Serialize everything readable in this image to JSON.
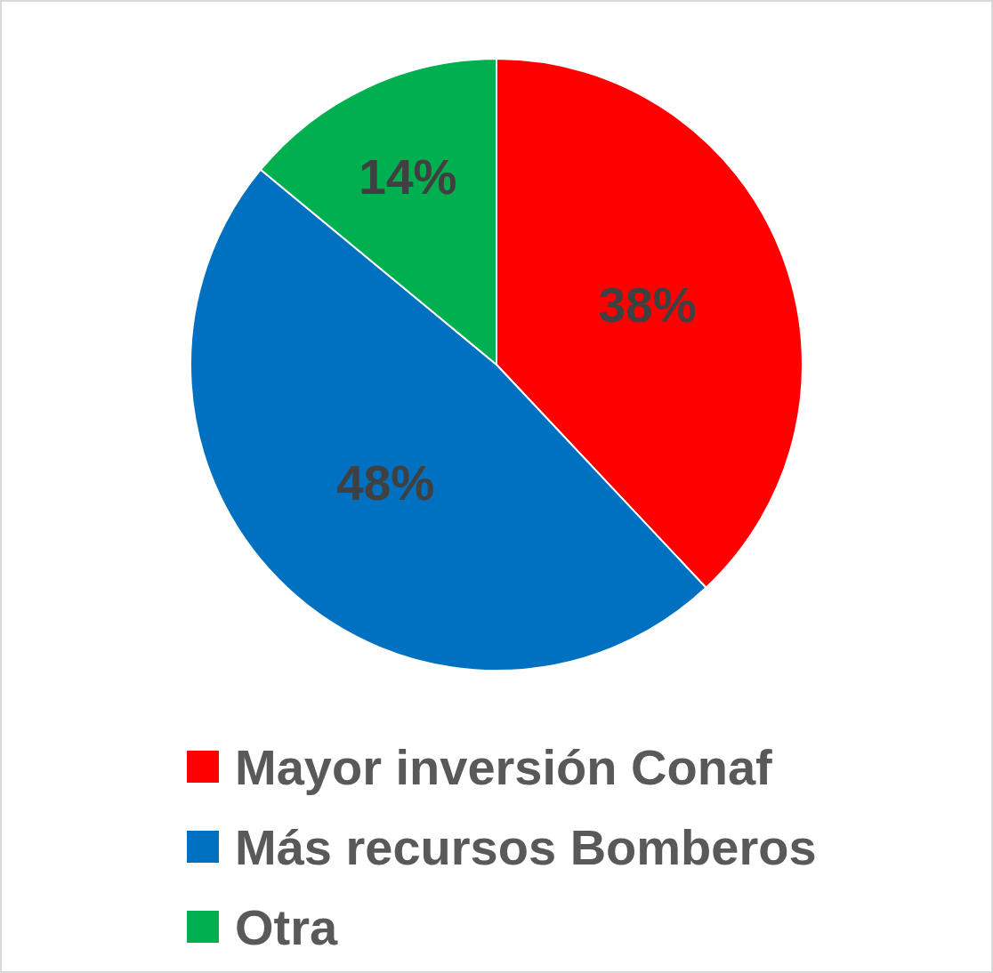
{
  "chart_data": {
    "type": "pie",
    "categories": [
      "Mayor inversión Conaf",
      "Más recursos Bomberos",
      "Otra"
    ],
    "values": [
      38,
      48,
      14
    ],
    "colors": [
      "#ff0000",
      "#0070c0",
      "#00b050"
    ],
    "value_labels": [
      "38%",
      "48%",
      "14%"
    ],
    "legend": "bottom"
  }
}
